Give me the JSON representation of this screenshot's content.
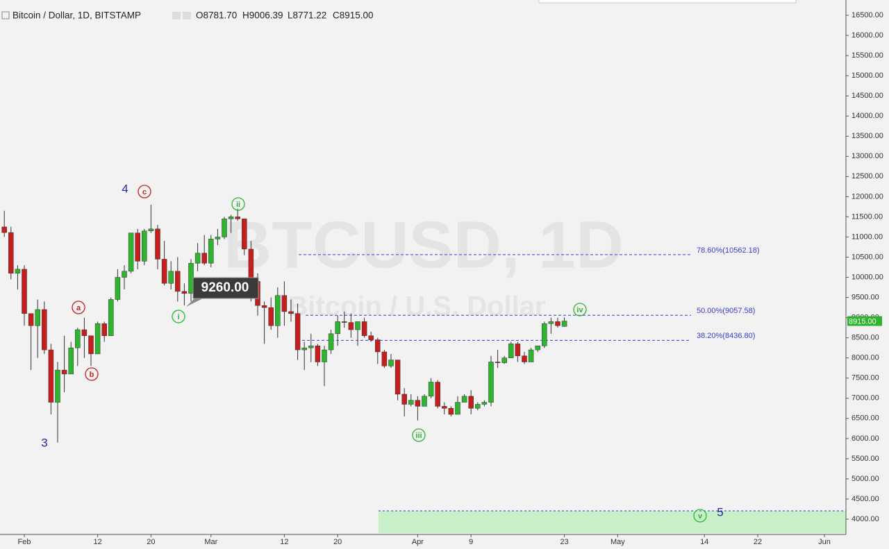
{
  "chart_data": {
    "type": "candlestick",
    "title": "Bitcoin / Dollar, 1D, BITSTAMP",
    "ohlc_text": [
      "O8781.70",
      "H9006.39",
      "L8771.22",
      "C8915.00"
    ],
    "watermark": "BTCUSD, 1D",
    "watermark_sub": "Bitcoin / U.S. Dollar",
    "up_color": "#2fb42f",
    "down_color": "#c41e1e",
    "x": [
      -3,
      -2,
      -1,
      0,
      1,
      2,
      3,
      4,
      5,
      6,
      7,
      8,
      9,
      10,
      11,
      12,
      13,
      14,
      15,
      16,
      17,
      18,
      19,
      20,
      21,
      22,
      23,
      24,
      25,
      26,
      27,
      28,
      29,
      30,
      31,
      32,
      33,
      34,
      35,
      36,
      37,
      38,
      39,
      40,
      41,
      42,
      43,
      44,
      45,
      46,
      47,
      48,
      49,
      50,
      51,
      52,
      53,
      54,
      55,
      56,
      57,
      58,
      59,
      60,
      61,
      62,
      63,
      64,
      65,
      66,
      67,
      68,
      69,
      70,
      71,
      72,
      73,
      74,
      75,
      76,
      77,
      78,
      79,
      80,
      81
    ],
    "open": [
      11250,
      11110,
      10100,
      10200,
      9100,
      8800,
      9200,
      8200,
      6900,
      7700,
      7600,
      8250,
      8700,
      8550,
      8100,
      8850,
      8550,
      9450,
      10000,
      10150,
      11100,
      10400,
      11150,
      11200,
      10450,
      9850,
      10150,
      9650,
      9600,
      10350,
      10600,
      10350,
      10950,
      11000,
      11450,
      11500,
      11450,
      10700,
      9900,
      9300,
      9250,
      8800,
      9550,
      9150,
      9100,
      8200,
      8250,
      8300,
      7900,
      8200,
      8600,
      8900,
      8880,
      8700,
      8900,
      8550,
      8450,
      8150,
      7800,
      7950,
      7100,
      6850,
      6950,
      6800,
      7050,
      7400,
      6800,
      6750,
      6600,
      6900,
      7050,
      6750,
      6850,
      6900,
      7900,
      7880,
      8000,
      8350,
      8050,
      7900,
      8200,
      8300,
      8850,
      8900,
      8781.7
    ],
    "high": [
      11650,
      11250,
      10300,
      10300,
      9100,
      9450,
      9400,
      8350,
      7900,
      8550,
      8400,
      8750,
      9000,
      8550,
      8900,
      8900,
      9500,
      10200,
      10300,
      11100,
      11200,
      11200,
      11800,
      11300,
      10900,
      10400,
      10500,
      9850,
      10450,
      10850,
      11050,
      11050,
      11200,
      11500,
      11550,
      11700,
      11450,
      10900,
      10100,
      9400,
      9500,
      9750,
      9900,
      9450,
      9350,
      8400,
      8600,
      8350,
      8300,
      8700,
      9050,
      9150,
      9100,
      8900,
      9000,
      8650,
      8500,
      8200,
      8100,
      7950,
      7250,
      7100,
      7050,
      7100,
      7500,
      7450,
      6900,
      6800,
      7050,
      7100,
      7200,
      6900,
      6950,
      8050,
      8200,
      8050,
      8400,
      8400,
      8150,
      8250,
      8300,
      8900,
      9000,
      9000,
      9006.39
    ],
    "low": [
      11000,
      9950,
      9700,
      8800,
      7700,
      8000,
      8100,
      6600,
      5900,
      7150,
      7600,
      7800,
      8000,
      7800,
      8100,
      8400,
      8550,
      9400,
      9700,
      10100,
      10200,
      10300,
      11100,
      10200,
      9800,
      9700,
      9400,
      9300,
      9400,
      10150,
      10300,
      10250,
      10800,
      10950,
      11100,
      11400,
      10550,
      9400,
      9050,
      8350,
      8700,
      8500,
      8800,
      8900,
      7950,
      7700,
      7900,
      7800,
      7300,
      8100,
      8300,
      8750,
      8500,
      8300,
      8500,
      8400,
      7850,
      7750,
      7750,
      6950,
      6550,
      6800,
      6450,
      6800,
      7000,
      6750,
      6600,
      6550,
      6600,
      6900,
      6600,
      6700,
      6800,
      6800,
      7750,
      7850,
      8000,
      7900,
      7850,
      7900,
      8150,
      8250,
      8600,
      8750,
      8771.22
    ],
    "close": [
      11110,
      10100,
      10200,
      9100,
      8800,
      9200,
      8200,
      6900,
      7700,
      7600,
      8250,
      8700,
      8550,
      8100,
      8850,
      8550,
      9450,
      10000,
      10150,
      11100,
      10400,
      11150,
      11200,
      10450,
      9850,
      10150,
      9650,
      9600,
      10350,
      10600,
      10350,
      10950,
      11000,
      11450,
      11500,
      11450,
      10700,
      9900,
      9300,
      9250,
      8800,
      9550,
      9150,
      9100,
      8200,
      8250,
      8300,
      7900,
      8200,
      8600,
      8900,
      8880,
      8700,
      8900,
      8550,
      8450,
      8150,
      7800,
      7950,
      7100,
      6850,
      6950,
      6800,
      7050,
      7400,
      6800,
      6750,
      6600,
      6900,
      7050,
      6750,
      6850,
      6900,
      7900,
      7880,
      8000,
      8350,
      8050,
      7900,
      8200,
      8300,
      8850,
      8900,
      8800,
      8915
    ],
    "xlim": [
      -3.646,
      123.23
    ],
    "ylim": [
      3656,
      16879
    ],
    "xticks": [
      {
        "value": 0,
        "label": "Feb"
      },
      {
        "value": 11,
        "label": "12"
      },
      {
        "value": 19,
        "label": "20"
      },
      {
        "value": 28,
        "label": "Mar"
      },
      {
        "value": 39,
        "label": "12"
      },
      {
        "value": 47,
        "label": "20"
      },
      {
        "value": 59,
        "label": "Apr"
      },
      {
        "value": 67,
        "label": "9"
      },
      {
        "value": 81,
        "label": "23"
      },
      {
        "value": 89,
        "label": "May"
      },
      {
        "value": 102,
        "label": "14"
      },
      {
        "value": 110,
        "label": "22"
      },
      {
        "value": 120,
        "label": "Jun"
      }
    ],
    "yticks": [
      {
        "value": 16500,
        "label": "16500.00"
      },
      {
        "value": 16000,
        "label": "16000.00"
      },
      {
        "value": 15500,
        "label": "15500.00"
      },
      {
        "value": 15000,
        "label": "15000.00"
      },
      {
        "value": 14500,
        "label": "14500.00"
      },
      {
        "value": 14000,
        "label": "14000.00"
      },
      {
        "value": 13500,
        "label": "13500.00"
      },
      {
        "value": 13000,
        "label": "13000.00"
      },
      {
        "value": 12500,
        "label": "12500.00"
      },
      {
        "value": 12000,
        "label": "12000.00"
      },
      {
        "value": 11500,
        "label": "11500.00"
      },
      {
        "value": 11000,
        "label": "11000.00"
      },
      {
        "value": 10500,
        "label": "10500.00"
      },
      {
        "value": 10000,
        "label": "10000.00"
      },
      {
        "value": 9500,
        "label": "9500.00"
      },
      {
        "value": 9000,
        "label": "9000.00"
      },
      {
        "value": 8500,
        "label": "8500.00"
      },
      {
        "value": 8000,
        "label": "8000.00"
      },
      {
        "value": 7500,
        "label": "7500.00"
      },
      {
        "value": 7000,
        "label": "7000.00"
      },
      {
        "value": 6500,
        "label": "6500.00"
      },
      {
        "value": 6000,
        "label": "6000.00"
      },
      {
        "value": 5500,
        "label": "5500.00"
      },
      {
        "value": 5000,
        "label": "5000.00"
      },
      {
        "value": 4500,
        "label": "4500.00"
      },
      {
        "value": 4000,
        "label": "4000.00"
      }
    ],
    "fib_levels": [
      {
        "value": 10562.18,
        "label": "78.60%(10562.18)"
      },
      {
        "value": 9057.58,
        "label": "50.00%(9057.58)"
      },
      {
        "value": 8436.8,
        "label": "38.20%(8436.80)"
      }
    ],
    "last_price": {
      "value": 8915,
      "label": "8915.00"
    },
    "callout": "9260.00",
    "annotations": [
      "4",
      "c",
      "a",
      "b",
      "3",
      "ii",
      "i",
      "iii",
      "iv",
      "v",
      "5"
    ]
  }
}
